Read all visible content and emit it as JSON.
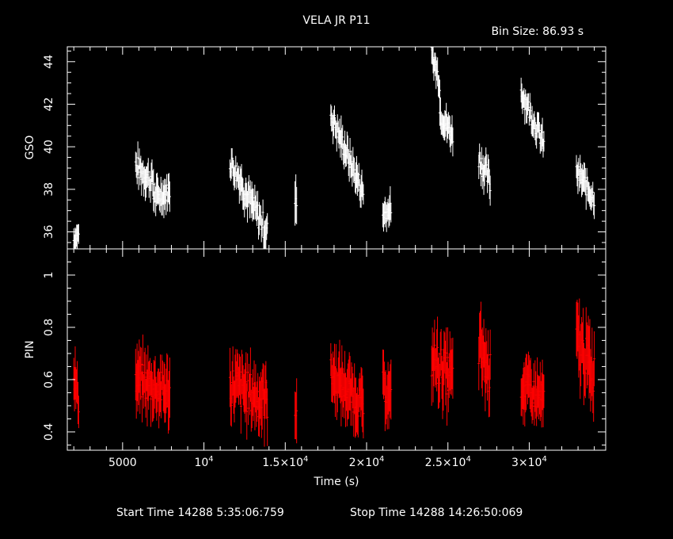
{
  "header": {
    "title": "VELA JR P11",
    "bin_size": "Bin Size:  86.93 s"
  },
  "footer": {
    "start_time": "Start Time 14288  5:35:06:759",
    "stop_time": "Stop Time 14288 14:26:50:069"
  },
  "chart_data": [
    {
      "type": "scatter",
      "ylabel": "GSO",
      "xlim": [
        1600,
        34700
      ],
      "ylim": [
        35.2,
        44.7
      ],
      "yticks": [
        "36",
        "38",
        "40",
        "42",
        "44"
      ],
      "color": "#ffffff",
      "segments": [
        {
          "t0": 2000,
          "t1": 2300,
          "y0": 35.6,
          "y1": 35.9,
          "noise": 0.3,
          "err": 0.55
        },
        {
          "t0": 5800,
          "t1": 6900,
          "y0": 39.1,
          "y1": 38.3,
          "noise": 0.55,
          "err": 0.6
        },
        {
          "t0": 6900,
          "t1": 7900,
          "y0": 37.6,
          "y1": 37.9,
          "noise": 0.45,
          "err": 0.6
        },
        {
          "t0": 11600,
          "t1": 12400,
          "y0": 39.3,
          "y1": 38.2,
          "noise": 0.5,
          "err": 0.6
        },
        {
          "t0": 12400,
          "t1": 13900,
          "y0": 38.0,
          "y1": 36.0,
          "noise": 0.6,
          "err": 0.6
        },
        {
          "t0": 15600,
          "t1": 15700,
          "y0": 37.4,
          "y1": 37.4,
          "noise": 0.2,
          "err": 1.1
        },
        {
          "t0": 17800,
          "t1": 19800,
          "y0": 41.5,
          "y1": 37.8,
          "noise": 0.5,
          "err": 0.6
        },
        {
          "t0": 21000,
          "t1": 21500,
          "y0": 36.8,
          "y1": 37.1,
          "noise": 0.3,
          "err": 0.65
        },
        {
          "t0": 24000,
          "t1": 24500,
          "y0": 44.4,
          "y1": 43.0,
          "noise": 0.4,
          "err": 0.6
        },
        {
          "t0": 24500,
          "t1": 25300,
          "y0": 41.6,
          "y1": 40.5,
          "noise": 0.45,
          "err": 0.6
        },
        {
          "t0": 26900,
          "t1": 27600,
          "y0": 39.5,
          "y1": 38.3,
          "noise": 0.55,
          "err": 0.6
        },
        {
          "t0": 29500,
          "t1": 30900,
          "y0": 42.6,
          "y1": 40.1,
          "noise": 0.45,
          "err": 0.55
        },
        {
          "t0": 32900,
          "t1": 34000,
          "y0": 38.8,
          "y1": 37.6,
          "noise": 0.45,
          "err": 0.6
        }
      ]
    },
    {
      "type": "scatter",
      "ylabel": "PIN",
      "xlabel": "Time (s)",
      "xlim": [
        1600,
        34700
      ],
      "ylim": [
        0.33,
        1.1
      ],
      "yticks": [
        "0.4",
        "0.6",
        "0.8",
        "1"
      ],
      "xticks": [
        "5000",
        "10",
        "1.5×10",
        "2×10",
        "2.5×10",
        "3×10"
      ],
      "xtick_exp": "4",
      "color": "#ff0000",
      "segments": [
        {
          "t0": 2000,
          "t1": 2300,
          "y0": 0.62,
          "y1": 0.52,
          "noise": 0.05,
          "err": 0.08
        },
        {
          "t0": 5800,
          "t1": 7900,
          "y0": 0.6,
          "y1": 0.55,
          "noise": 0.07,
          "err": 0.09
        },
        {
          "t0": 11600,
          "t1": 13900,
          "y0": 0.58,
          "y1": 0.52,
          "noise": 0.08,
          "err": 0.09
        },
        {
          "t0": 15600,
          "t1": 15700,
          "y0": 0.48,
          "y1": 0.48,
          "noise": 0.03,
          "err": 0.1
        },
        {
          "t0": 17800,
          "t1": 19800,
          "y0": 0.62,
          "y1": 0.5,
          "noise": 0.06,
          "err": 0.09
        },
        {
          "t0": 21000,
          "t1": 21500,
          "y0": 0.58,
          "y1": 0.52,
          "noise": 0.05,
          "err": 0.09
        },
        {
          "t0": 24000,
          "t1": 25300,
          "y0": 0.68,
          "y1": 0.6,
          "noise": 0.08,
          "err": 0.1
        },
        {
          "t0": 26900,
          "t1": 27600,
          "y0": 0.72,
          "y1": 0.62,
          "noise": 0.08,
          "err": 0.11
        },
        {
          "t0": 29500,
          "t1": 30900,
          "y0": 0.58,
          "y1": 0.52,
          "noise": 0.06,
          "err": 0.09
        },
        {
          "t0": 32900,
          "t1": 34000,
          "y0": 0.75,
          "y1": 0.62,
          "noise": 0.08,
          "err": 0.11
        }
      ]
    }
  ]
}
